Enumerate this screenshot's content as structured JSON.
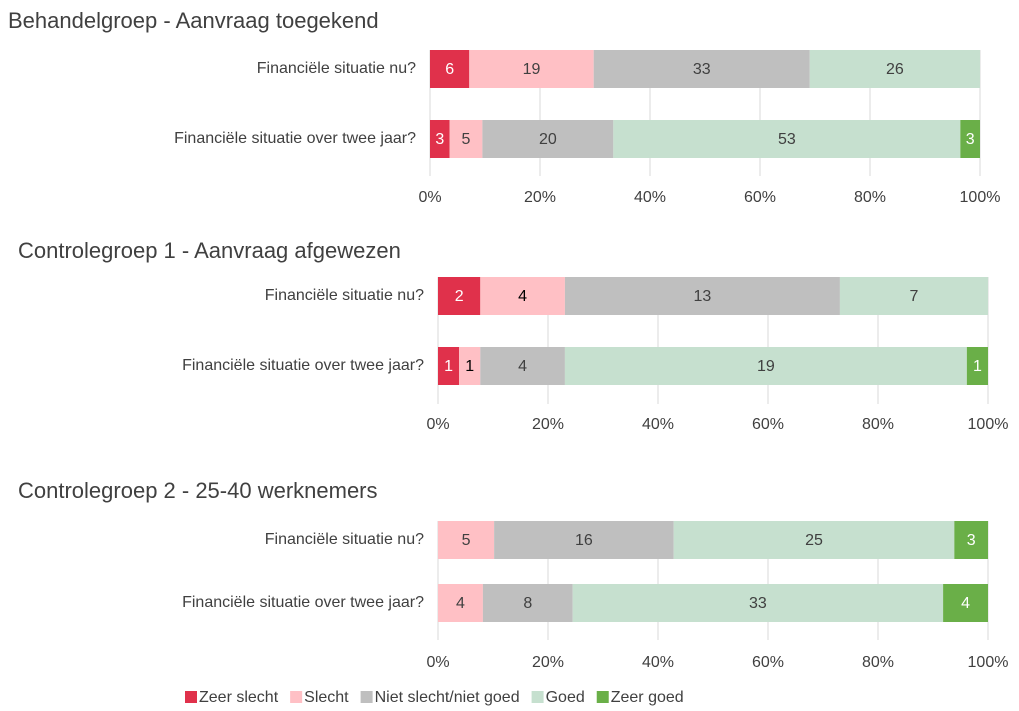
{
  "chart_data": [
    {
      "type": "bar",
      "stack": "percent",
      "title": "Behandelgroep - Aanvraag toegekend",
      "categories": [
        "Financiële situatie nu?",
        "Financiële situatie over twee jaar?"
      ],
      "series": [
        {
          "name": "Zeer slecht",
          "color": "#e0314b",
          "label_color": "#ffffff",
          "values": [
            6,
            3
          ]
        },
        {
          "name": "Slecht",
          "color": "#ffc0c5",
          "label_color": "#404040",
          "values": [
            19,
            5
          ]
        },
        {
          "name": "Niet slecht/niet goed",
          "color": "#bfbfbf",
          "label_color": "#404040",
          "values": [
            33,
            20
          ]
        },
        {
          "name": "Goed",
          "color": "#c6e0cf",
          "label_color": "#404040",
          "values": [
            26,
            53
          ]
        },
        {
          "name": "Zeer goed",
          "color": "#6aaf48",
          "label_color": "#ffffff",
          "values": [
            0,
            3
          ]
        }
      ],
      "xlim": [
        0,
        100
      ],
      "xticks": [
        {
          "value": 0,
          "label": "0%"
        },
        {
          "value": 20,
          "label": "20%"
        },
        {
          "value": 40,
          "label": "40%"
        },
        {
          "value": 60,
          "label": "60%"
        },
        {
          "value": 80,
          "label": "80%"
        },
        {
          "value": 100,
          "label": "100%"
        }
      ],
      "grid": true
    },
    {
      "type": "bar",
      "stack": "percent",
      "title": "Controlegroep 1 - Aanvraag afgewezen",
      "categories": [
        "Financiële situatie nu?",
        "Financiële situatie over twee jaar?"
      ],
      "series": [
        {
          "name": "Zeer slecht",
          "color": "#e0314b",
          "label_color": "#ffffff",
          "values": [
            2,
            1
          ]
        },
        {
          "name": "Slecht",
          "color": "#ffc0c5",
          "label_color": "#000000",
          "values": [
            4,
            1
          ]
        },
        {
          "name": "Niet slecht/niet goed",
          "color": "#bfbfbf",
          "label_color": "#404040",
          "values": [
            13,
            4
          ]
        },
        {
          "name": "Goed",
          "color": "#c6e0cf",
          "label_color": "#404040",
          "values": [
            7,
            19
          ]
        },
        {
          "name": "Zeer goed",
          "color": "#6aaf48",
          "label_color": "#ffffff",
          "values": [
            0,
            1
          ]
        }
      ],
      "xlim": [
        0,
        100
      ],
      "xticks": [
        {
          "value": 0,
          "label": "0%"
        },
        {
          "value": 20,
          "label": "20%"
        },
        {
          "value": 40,
          "label": "40%"
        },
        {
          "value": 60,
          "label": "60%"
        },
        {
          "value": 80,
          "label": "80%"
        },
        {
          "value": 100,
          "label": "100%"
        }
      ],
      "grid": true
    },
    {
      "type": "bar",
      "stack": "percent",
      "title": "Controlegroep 2 - 25-40 werknemers",
      "categories": [
        "Financiële situatie nu?",
        "Financiële situatie over twee jaar?"
      ],
      "series": [
        {
          "name": "Zeer slecht",
          "color": "#e0314b",
          "label_color": "#ffffff",
          "values": [
            0,
            0
          ]
        },
        {
          "name": "Slecht",
          "color": "#ffc0c5",
          "label_color": "#404040",
          "values": [
            5,
            4
          ]
        },
        {
          "name": "Niet slecht/niet goed",
          "color": "#bfbfbf",
          "label_color": "#404040",
          "values": [
            16,
            8
          ]
        },
        {
          "name": "Goed",
          "color": "#c6e0cf",
          "label_color": "#404040",
          "values": [
            25,
            33
          ]
        },
        {
          "name": "Zeer goed",
          "color": "#6aaf48",
          "label_color": "#ffffff",
          "values": [
            3,
            4
          ]
        }
      ],
      "xlim": [
        0,
        100
      ],
      "xticks": [
        {
          "value": 0,
          "label": "0%"
        },
        {
          "value": 20,
          "label": "20%"
        },
        {
          "value": 40,
          "label": "40%"
        },
        {
          "value": 60,
          "label": "60%"
        },
        {
          "value": 80,
          "label": "80%"
        },
        {
          "value": 100,
          "label": "100%"
        }
      ],
      "grid": true,
      "legend": "bottom"
    }
  ]
}
